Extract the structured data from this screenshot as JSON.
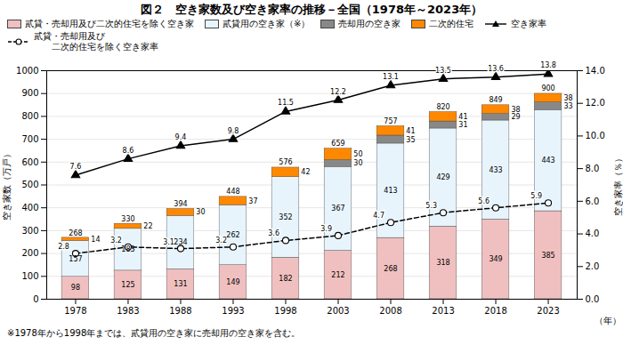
{
  "chart_data": {
    "type": "bar",
    "title": "図２　空き家数及び空き家率の推移－全国（1978年～2023年）",
    "categories": [
      "1978",
      "1983",
      "1988",
      "1993",
      "1998",
      "2003",
      "2008",
      "2013",
      "2018",
      "2023"
    ],
    "series": [
      {
        "name": "貳貸・売却用及び二次的住宅を除く空き家",
        "color": "#f0c0c0",
        "values": [
          98,
          125,
          131,
          149,
          182,
          212,
          268,
          318,
          349,
          385
        ]
      },
      {
        "name": "貳貸用の空き家（※）",
        "color": "#e8f4fc",
        "values": [
          157,
          183,
          234,
          262,
          352,
          367,
          413,
          429,
          433,
          443
        ]
      },
      {
        "name": "売却用の空き家",
        "color": "#888888",
        "values": [
          0,
          0,
          0,
          0,
          0,
          30,
          35,
          31,
          29,
          33
        ]
      },
      {
        "name": "二次的住宅",
        "color": "#ff8800",
        "values": [
          14,
          22,
          30,
          37,
          42,
          50,
          41,
          41,
          38,
          38
        ]
      },
      {
        "name": "空き家率",
        "type": "line",
        "axis": "y2",
        "color": "#000000",
        "marker": "triangle",
        "line_style": "solid",
        "values": [
          7.6,
          8.6,
          9.4,
          9.8,
          11.5,
          12.2,
          13.1,
          13.5,
          13.6,
          13.8
        ]
      },
      {
        "name": "貳貸・売却用及び\n　　二次的住宅を除く空き家率",
        "type": "line",
        "axis": "y2",
        "color": "#000000",
        "marker": "circle",
        "line_style": "dashed",
        "values": [
          2.8,
          3.2,
          3.1,
          3.2,
          3.6,
          3.9,
          4.7,
          5.3,
          5.6,
          5.9
        ]
      }
    ],
    "totals": [
      268,
      330,
      394,
      448,
      576,
      659,
      757,
      820,
      849,
      900
    ],
    "stacked": true,
    "data_labels": true,
    "grid": true,
    "legend": "upper left",
    "ylim": [
      0,
      1000
    ],
    "yticks": [
      0,
      100,
      200,
      300,
      400,
      500,
      600,
      700,
      800,
      900,
      1000
    ],
    "y2lim": [
      0,
      14
    ],
    "y2ticks": [
      {
        "value": 0,
        "label": "0.0"
      },
      {
        "value": 2,
        "label": "2.0"
      },
      {
        "value": 4,
        "label": "4.0"
      },
      {
        "value": 6,
        "label": "6.0"
      },
      {
        "value": 8,
        "label": "8.0"
      },
      {
        "value": 10,
        "label": "10.0"
      },
      {
        "value": 12,
        "label": "12.0"
      },
      {
        "value": 14,
        "label": "14.0"
      }
    ],
    "ylabel": "空き家数（万戸）",
    "y2label": "空き家率（％）",
    "xlabel": "（年）",
    "footnote": "※1978年から1998年までは、貳貸用の空き家に売却用の空き家を含む。"
  }
}
